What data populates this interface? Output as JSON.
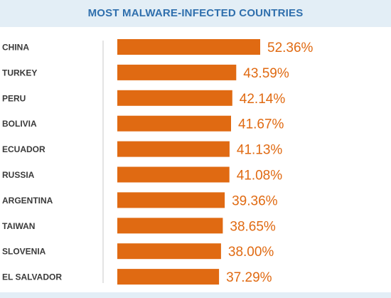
{
  "chart_data": {
    "type": "bar",
    "orientation": "horizontal",
    "title": "MOST MALWARE-INFECTED COUNTRIES",
    "categories": [
      "CHINA",
      "TURKEY",
      "PERU",
      "BOLIVIA",
      "ECUADOR",
      "RUSSIA",
      "ARGENTINA",
      "TAIWAN",
      "SLOVENIA",
      "EL SALVADOR"
    ],
    "values": [
      52.36,
      43.59,
      42.14,
      41.67,
      41.13,
      41.08,
      39.36,
      38.65,
      38.0,
      37.29
    ],
    "data_labels": [
      "52.36%",
      "43.59%",
      "42.14%",
      "41.67%",
      "41.13%",
      "41.08%",
      "39.36%",
      "38.65%",
      "38.00%",
      "37.29%"
    ],
    "bar_color": "#e06a12",
    "label_color": "#e06a12",
    "title_color": "#2f6fad",
    "grid": false
  }
}
